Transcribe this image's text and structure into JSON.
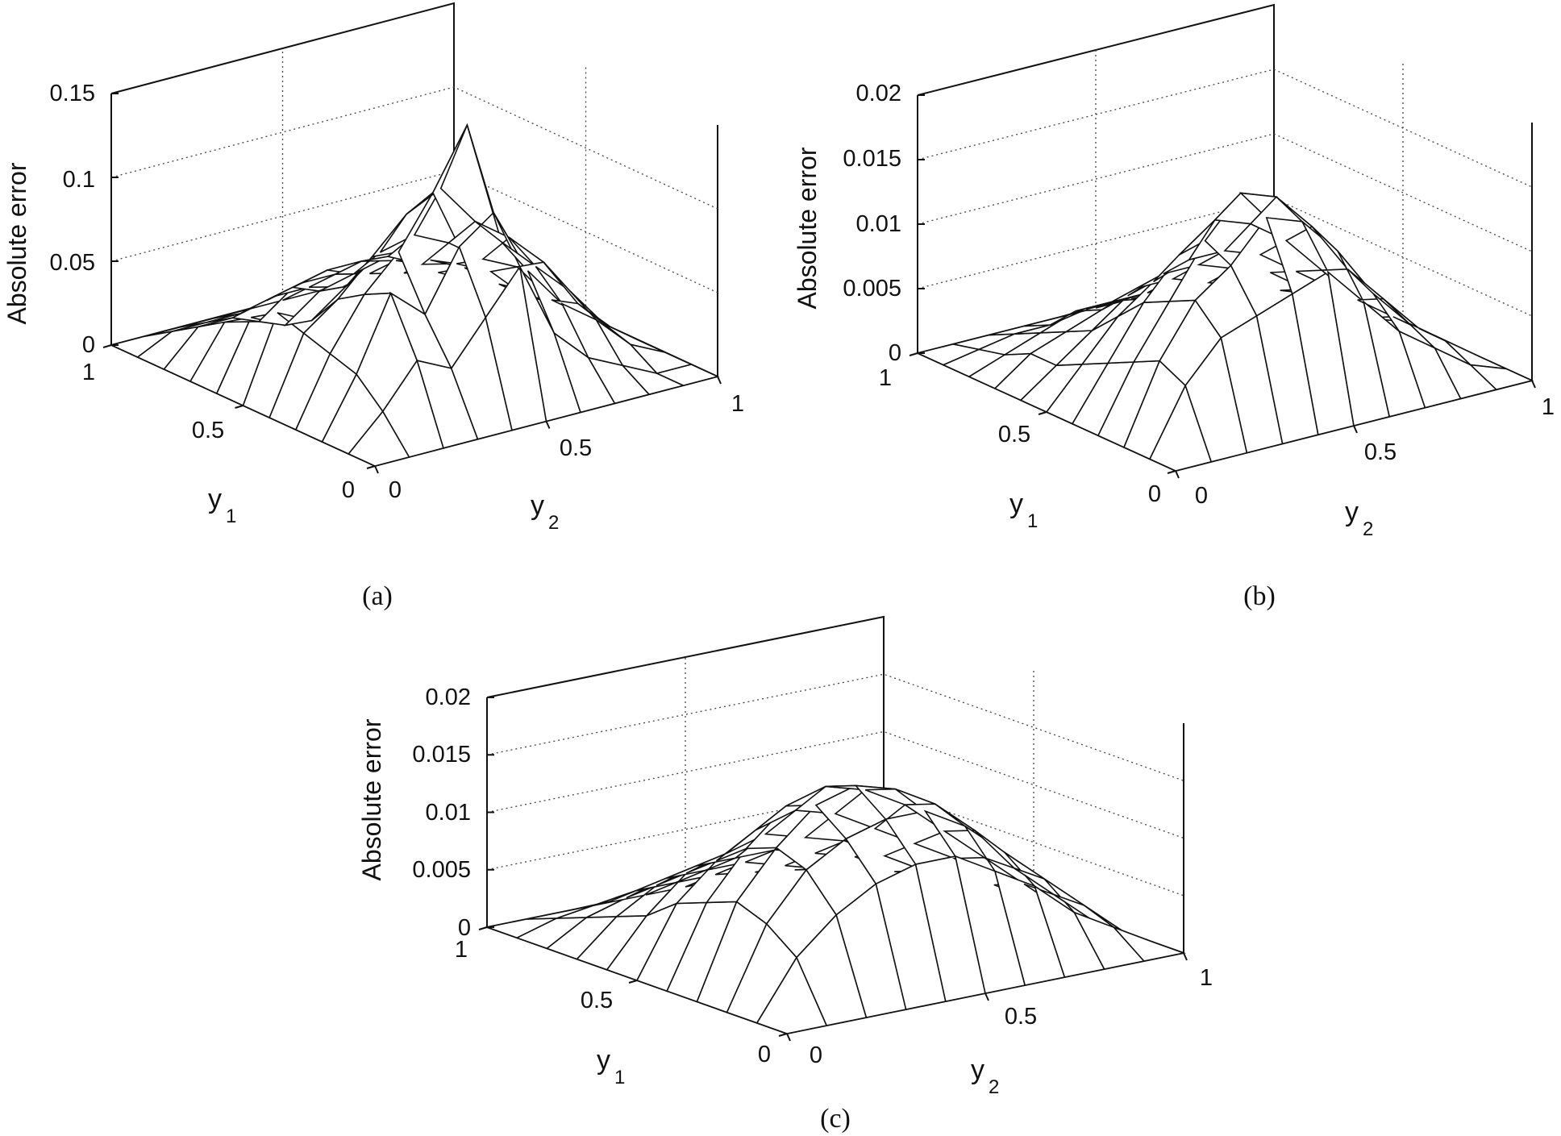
{
  "chart_data": [
    {
      "type": "surface",
      "panel": "(a)",
      "zlabel": "Absolute error",
      "y1_label": "y",
      "y1_sub": "1",
      "y2_label": "y",
      "y2_sub": "2",
      "zlim": [
        0,
        0.15
      ],
      "z_ticks": [
        "0",
        "0.05",
        "0.1",
        "0.15"
      ],
      "y1_ticks": [
        "0",
        "0.5",
        "1"
      ],
      "y2_ticks": [
        "0",
        "0.5",
        "1"
      ],
      "y1_range": [
        0,
        1
      ],
      "y2_range": [
        0,
        1
      ],
      "grid": true,
      "z": [
        [
          0.0,
          0.0,
          0.0,
          0.0,
          0.0,
          0.0,
          0.0,
          0.0,
          0.0,
          0.0,
          0.0
        ],
        [
          0.0,
          0.02,
          0.045,
          0.035,
          0.06,
          0.085,
          0.04,
          0.02,
          0.01,
          0.0,
          0.0
        ],
        [
          0.0,
          0.035,
          0.078,
          0.06,
          0.095,
          0.11,
          0.07,
          0.045,
          0.03,
          0.01,
          0.0
        ],
        [
          0.0,
          0.04,
          0.07,
          0.09,
          0.12,
          0.155,
          0.08,
          0.06,
          0.04,
          0.015,
          0.0
        ],
        [
          0.0,
          0.045,
          0.06,
          0.08,
          0.1,
          0.11,
          0.085,
          0.07,
          0.05,
          0.02,
          0.0
        ],
        [
          0.0,
          0.05,
          0.04,
          0.055,
          0.07,
          0.075,
          0.065,
          0.05,
          0.04,
          0.015,
          0.0
        ],
        [
          0.0,
          0.04,
          0.03,
          0.045,
          0.05,
          0.055,
          0.045,
          0.04,
          0.03,
          0.01,
          0.0
        ],
        [
          0.0,
          0.03,
          0.025,
          0.04,
          0.045,
          0.045,
          0.04,
          0.035,
          0.025,
          0.01,
          0.0
        ],
        [
          0.0,
          0.02,
          0.02,
          0.025,
          0.03,
          0.03,
          0.025,
          0.02,
          0.015,
          0.005,
          0.0
        ],
        [
          0.0,
          0.01,
          0.01,
          0.01,
          0.015,
          0.015,
          0.01,
          0.01,
          0.005,
          0.0,
          0.0
        ],
        [
          0.0,
          0.0,
          0.0,
          0.0,
          0.0,
          0.0,
          0.0,
          0.0,
          0.0,
          0.0,
          0.0
        ]
      ]
    },
    {
      "type": "surface",
      "panel": "(b)",
      "zlabel": "Absolute error",
      "y1_label": "y",
      "y1_sub": "1",
      "y2_label": "y",
      "y2_sub": "2",
      "zlim": [
        0,
        0.02
      ],
      "z_ticks": [
        "0",
        "0.005",
        "0.01",
        "0.015",
        "0.02"
      ],
      "y1_ticks": [
        "0",
        "0.5",
        "1"
      ],
      "y2_ticks": [
        "0",
        "0.5",
        "1"
      ],
      "y1_range": [
        0,
        1
      ],
      "y2_range": [
        0,
        1
      ],
      "grid": true,
      "z": [
        [
          0.0,
          0.0,
          0.0,
          0.0,
          0.0,
          0.0,
          0.0,
          0.0,
          0.0,
          0.0,
          0.0
        ],
        [
          0.0,
          0.005,
          0.008,
          0.009,
          0.01,
          0.011,
          0.008,
          0.005,
          0.003,
          0.001,
          0.0
        ],
        [
          0.0,
          0.006,
          0.01,
          0.012,
          0.015,
          0.014,
          0.011,
          0.007,
          0.004,
          0.002,
          0.0
        ],
        [
          0.0,
          0.005,
          0.009,
          0.013,
          0.016,
          0.015,
          0.012,
          0.008,
          0.005,
          0.002,
          0.0
        ],
        [
          0.0,
          0.004,
          0.008,
          0.011,
          0.013,
          0.012,
          0.01,
          0.007,
          0.004,
          0.002,
          0.0
        ],
        [
          0.0,
          0.003,
          0.006,
          0.008,
          0.009,
          0.009,
          0.008,
          0.006,
          0.004,
          0.001,
          0.0
        ],
        [
          0.0,
          0.002,
          0.004,
          0.006,
          0.007,
          0.007,
          0.006,
          0.005,
          0.003,
          0.001,
          0.0
        ],
        [
          0.0,
          0.002,
          0.003,
          0.004,
          0.005,
          0.005,
          0.004,
          0.003,
          0.002,
          0.001,
          0.0
        ],
        [
          0.0,
          0.001,
          0.002,
          0.003,
          0.003,
          0.003,
          0.003,
          0.002,
          0.001,
          0.0005,
          0.0
        ],
        [
          0.0,
          0.0005,
          0.001,
          0.001,
          0.0015,
          0.0015,
          0.001,
          0.001,
          0.0005,
          0.0,
          0.0
        ],
        [
          0.0,
          0.0,
          0.0,
          0.0,
          0.0,
          0.0,
          0.0,
          0.0,
          0.0,
          0.0,
          0.0
        ]
      ]
    },
    {
      "type": "surface",
      "panel": "(c)",
      "zlabel": "Absolute error",
      "y1_label": "y",
      "y1_sub": "1",
      "y2_label": "y",
      "y2_sub": "2",
      "zlim": [
        0,
        0.02
      ],
      "z_ticks": [
        "0",
        "0.005",
        "0.01",
        "0.015",
        "0.02"
      ],
      "y1_ticks": [
        "0",
        "0.5",
        "1"
      ],
      "y2_ticks": [
        "0",
        "0.5",
        "1"
      ],
      "y1_range": [
        0,
        1
      ],
      "y2_range": [
        0,
        1
      ],
      "grid": true,
      "z": [
        [
          0.0,
          0.0,
          0.0,
          0.0,
          0.0,
          0.0,
          0.0,
          0.0,
          0.0,
          0.0,
          0.0
        ],
        [
          0.0,
          0.005,
          0.008,
          0.01,
          0.011,
          0.011,
          0.009,
          0.007,
          0.004,
          0.002,
          0.0
        ],
        [
          0.0,
          0.007,
          0.011,
          0.013,
          0.014,
          0.014,
          0.012,
          0.009,
          0.006,
          0.003,
          0.0
        ],
        [
          0.0,
          0.008,
          0.012,
          0.015,
          0.016,
          0.015,
          0.013,
          0.01,
          0.006,
          0.003,
          0.0
        ],
        [
          0.0,
          0.007,
          0.011,
          0.014,
          0.015,
          0.014,
          0.012,
          0.009,
          0.006,
          0.003,
          0.0
        ],
        [
          0.0,
          0.006,
          0.009,
          0.011,
          0.012,
          0.011,
          0.009,
          0.007,
          0.005,
          0.002,
          0.0
        ],
        [
          0.0,
          0.004,
          0.007,
          0.008,
          0.009,
          0.008,
          0.007,
          0.005,
          0.003,
          0.0015,
          0.0
        ],
        [
          0.0,
          0.003,
          0.005,
          0.006,
          0.006,
          0.006,
          0.005,
          0.004,
          0.002,
          0.001,
          0.0
        ],
        [
          0.0,
          0.002,
          0.003,
          0.004,
          0.004,
          0.004,
          0.003,
          0.002,
          0.0015,
          0.0005,
          0.0
        ],
        [
          0.0,
          0.001,
          0.0015,
          0.002,
          0.002,
          0.002,
          0.0015,
          0.001,
          0.0005,
          0.0,
          0.0
        ],
        [
          0.0,
          0.0,
          0.0,
          0.0,
          0.0,
          0.0,
          0.0,
          0.0,
          0.0,
          0.0,
          0.0
        ]
      ]
    }
  ]
}
